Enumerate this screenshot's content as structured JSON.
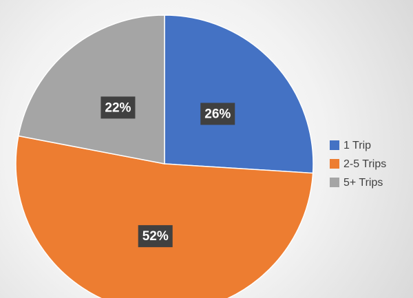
{
  "chart_data": {
    "type": "pie",
    "categories": [
      "1 Trip",
      "2-5 Trips",
      "5+ Trips"
    ],
    "values": [
      26,
      52,
      22
    ],
    "value_labels": [
      "26%",
      "52%",
      "22%"
    ],
    "colors": [
      "#4472c4",
      "#ed7d31",
      "#a5a5a5"
    ],
    "legend": "right"
  }
}
